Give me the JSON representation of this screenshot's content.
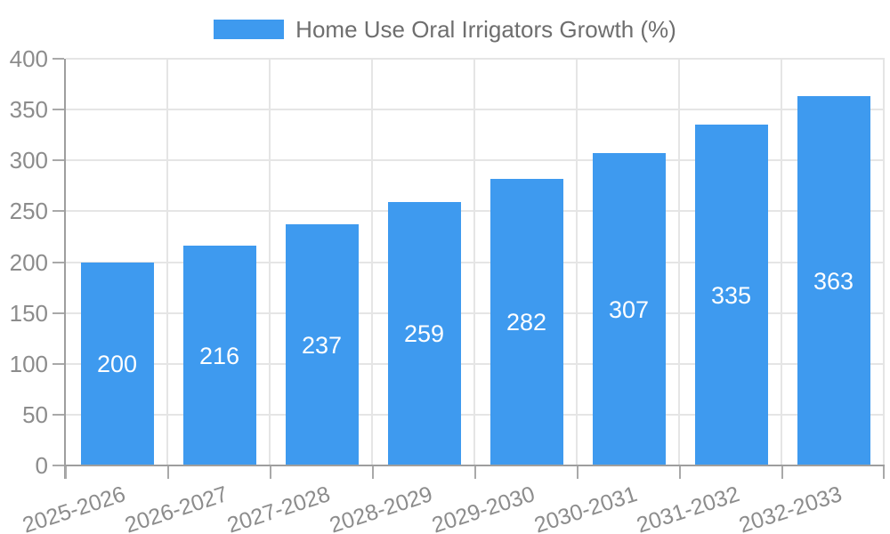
{
  "chart_data": {
    "type": "bar",
    "title": "Home Use Oral Irrigators Growth (%)",
    "categories": [
      "2025-2026",
      "2026-2027",
      "2027-2028",
      "2028-2029",
      "2029-2030",
      "2030-2031",
      "2031-2032",
      "2032-2033"
    ],
    "values": [
      200,
      216,
      237,
      259,
      282,
      307,
      335,
      363
    ],
    "xlabel": "",
    "ylabel": "",
    "ylim": [
      0,
      400
    ],
    "yticks": [
      0,
      50,
      100,
      150,
      200,
      250,
      300,
      350,
      400
    ],
    "grid": true,
    "legend_position": "top",
    "value_labels_inside_bars": true
  },
  "legend": {
    "label": "Home Use Oral Irrigators Growth (%)"
  },
  "colors": {
    "bar": "#3E9AEF",
    "gridline": "#E5E5E5",
    "axis": "#9E9E9E",
    "tick": "#A9A9A9",
    "axis_label_text": "#8C8C8C",
    "legend_text": "#6E6E6E",
    "value_label_text": "#FFFFFF",
    "background": "#FFFFFF"
  }
}
